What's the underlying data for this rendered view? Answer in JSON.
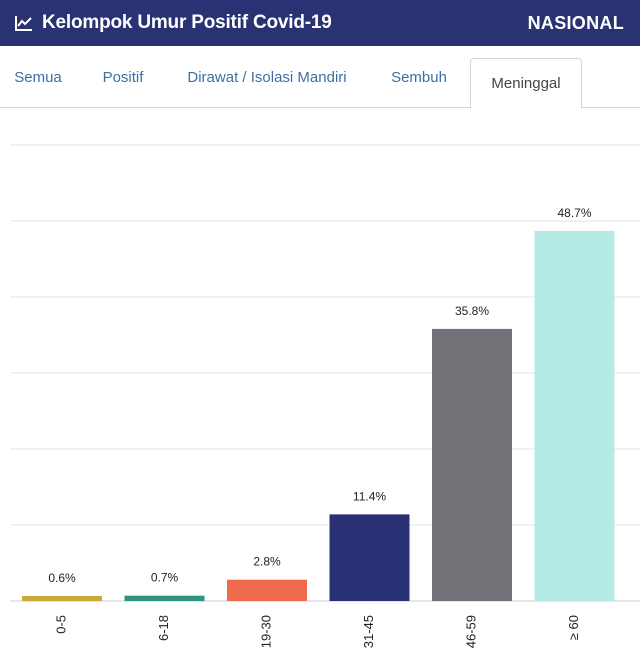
{
  "header": {
    "title": "Kelompok Umur Positif Covid-19",
    "scope": "NASIONAL",
    "icon": "line-chart-icon"
  },
  "tabs": [
    {
      "label": "Semua",
      "active": false
    },
    {
      "label": "Positif",
      "active": false
    },
    {
      "label": "Dirawat / Isolasi Mandiri",
      "active": false
    },
    {
      "label": "Sembuh",
      "active": false
    },
    {
      "label": "Meninggal",
      "active": true
    }
  ],
  "chart_data": {
    "type": "bar",
    "categories": [
      "0-5",
      "6-18",
      "19-30",
      "31-45",
      "46-59",
      "≥ 60"
    ],
    "values": [
      0.6,
      0.7,
      2.8,
      11.4,
      35.8,
      48.7
    ],
    "data_labels": [
      "0.6%",
      "0.7%",
      "2.8%",
      "11.4%",
      "35.8%",
      "48.7%"
    ],
    "colors": [
      "#c9a93a",
      "#2e9482",
      "#ef6a4c",
      "#2a3075",
      "#727378",
      "#b5ebe4"
    ],
    "ylim": [
      0,
      60
    ],
    "grid": true,
    "title": "",
    "xlabel": "",
    "ylabel": ""
  }
}
